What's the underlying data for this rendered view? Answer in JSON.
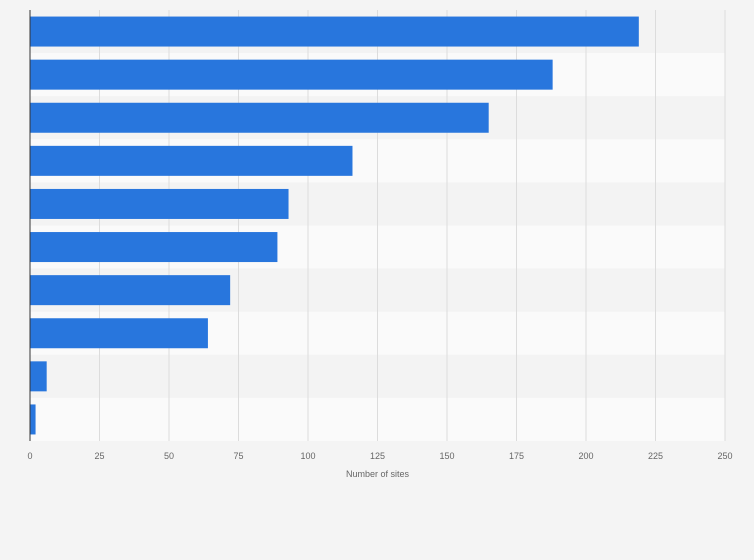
{
  "chart_data": {
    "type": "bar",
    "orientation": "horizontal",
    "title": "",
    "xlabel": "Number of sites",
    "ylabel": "",
    "xlim": [
      0,
      250
    ],
    "x_ticks": [
      0,
      25,
      50,
      75,
      100,
      125,
      150,
      175,
      200,
      225,
      250
    ],
    "x_tick_labels": [
      "0",
      "25",
      "50",
      "75",
      "100",
      "125",
      "150",
      "175",
      "200",
      "225",
      "250"
    ],
    "categories": [
      "",
      "",
      "",
      "",
      "",
      "",
      "",
      "",
      "",
      ""
    ],
    "values": [
      219,
      188,
      165,
      116,
      93,
      89,
      72,
      64,
      6,
      2
    ],
    "grid": true,
    "bar_color": "#2876dd",
    "band_colors": [
      "#f3f3f3",
      "#fafafa"
    ],
    "grid_color": "#dcdcdc",
    "axis_color": "#333333",
    "background": "#f4f4f4"
  }
}
